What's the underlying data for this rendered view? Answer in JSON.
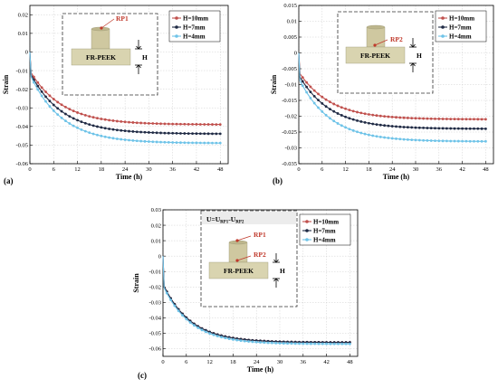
{
  "colors": {
    "H10": "#c0504d",
    "H7": "#1f2a44",
    "H4": "#6ec3e8",
    "pedestal": "#d9d4b0",
    "rp": "#c0392b"
  },
  "chart_data": [
    {
      "type": "line",
      "panel": "(a)",
      "xlabel": "Time (h)",
      "ylabel": "Strain",
      "xlim": [
        0,
        50
      ],
      "ylim": [
        -0.06,
        0.025
      ],
      "xticks": [
        0,
        6,
        12,
        18,
        24,
        30,
        36,
        42,
        48
      ],
      "yticks": [
        -0.06,
        -0.05,
        -0.04,
        -0.03,
        -0.02,
        -0.01,
        0,
        0.01,
        0.02
      ],
      "ytick_labels": [
        "-0.06",
        "-0.05",
        "-0.04",
        "-0.03",
        "-0.02",
        "-0.01",
        "0",
        "0.01",
        "0.02"
      ],
      "grid": true,
      "legend": "top-right",
      "series": [
        {
          "name": "H=10mm",
          "color_key": "H10",
          "start": -0.01,
          "final": -0.039,
          "tau": 8
        },
        {
          "name": "H=7mm",
          "color_key": "H7",
          "start": -0.011,
          "final": -0.044,
          "tau": 8
        },
        {
          "name": "H=4mm",
          "color_key": "H4",
          "start": -0.012,
          "final": -0.049,
          "tau": 8
        }
      ],
      "inset": {
        "labels": [
          "RP1",
          "FR-PEEK",
          "H"
        ]
      }
    },
    {
      "type": "line",
      "panel": "(b)",
      "xlabel": "Time (h)",
      "ylabel": "Strain",
      "xlim": [
        0,
        50
      ],
      "ylim": [
        -0.035,
        0.015
      ],
      "xticks": [
        0,
        6,
        12,
        18,
        24,
        30,
        36,
        42,
        48
      ],
      "yticks": [
        -0.035,
        -0.03,
        -0.025,
        -0.02,
        -0.015,
        -0.01,
        -0.005,
        0,
        0.005,
        0.01,
        0.015
      ],
      "ytick_labels": [
        "-0.035",
        "-0.03",
        "-0.025",
        "-0.02",
        "-0.015",
        "-0.01",
        "-0.005",
        "0",
        "0.005",
        "0.01",
        "0.015"
      ],
      "grid": true,
      "legend": "top-right",
      "series": [
        {
          "name": "H=10mm",
          "color_key": "H10",
          "start": -0.006,
          "final": -0.021,
          "tau": 8
        },
        {
          "name": "H=7mm",
          "color_key": "H7",
          "start": -0.007,
          "final": -0.024,
          "tau": 8
        },
        {
          "name": "H=4mm",
          "color_key": "H4",
          "start": -0.008,
          "final": -0.028,
          "tau": 8
        }
      ],
      "inset": {
        "labels": [
          "RP2",
          "FR-PEEK",
          "H"
        ]
      }
    },
    {
      "type": "line",
      "panel": "(c)",
      "xlabel": "Time (h)",
      "ylabel": "Strain",
      "xlim": [
        0,
        50
      ],
      "ylim": [
        -0.065,
        0.03
      ],
      "xticks": [
        0,
        6,
        12,
        18,
        24,
        30,
        36,
        42,
        48
      ],
      "yticks": [
        -0.06,
        -0.05,
        -0.04,
        -0.03,
        -0.02,
        -0.01,
        0,
        0.01,
        0.02,
        0.03
      ],
      "ytick_labels": [
        "-0.06",
        "-0.05",
        "-0.04",
        "-0.03",
        "-0.02",
        "-0.01",
        "0",
        "0.01",
        "0.02",
        "0.03"
      ],
      "grid": true,
      "legend": "top-right",
      "series": [
        {
          "name": "H=10mm",
          "color_key": "H10",
          "start": -0.018,
          "final": -0.056,
          "tau": 7
        },
        {
          "name": "H=7mm",
          "color_key": "H7",
          "start": -0.018,
          "final": -0.056,
          "tau": 7
        },
        {
          "name": "H=4mm",
          "color_key": "H4",
          "start": -0.019,
          "final": -0.057,
          "tau": 7
        }
      ],
      "inset": {
        "labels": [
          "U=U",
          "RP1",
          "-U",
          "RP2",
          "RP1",
          "RP2",
          "FR-PEEK",
          "H"
        ]
      }
    }
  ]
}
